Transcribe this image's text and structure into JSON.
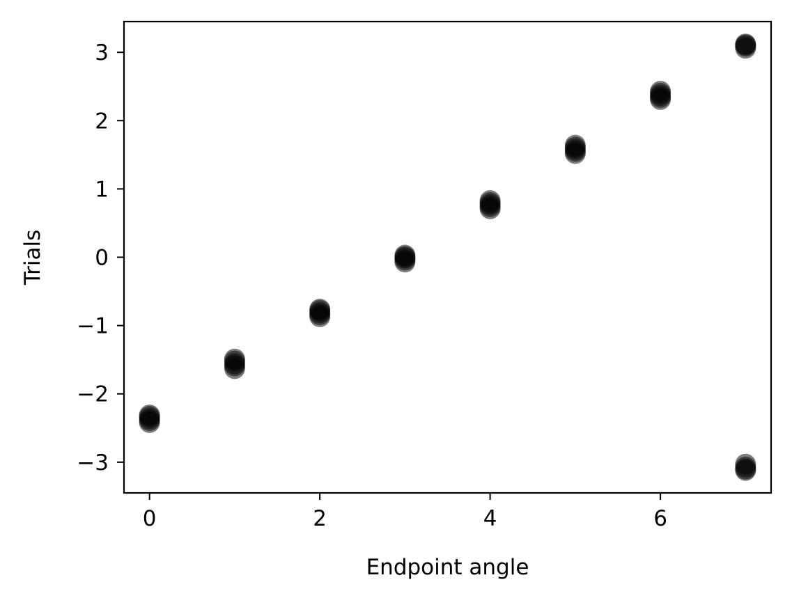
{
  "chart_data": {
    "type": "scatter",
    "title": "",
    "xlabel": "Endpoint angle",
    "ylabel": "Trials",
    "xlim": [
      -0.3,
      7.3
    ],
    "ylim": [
      -3.45,
      3.45
    ],
    "x_ticks": [
      0,
      2,
      4,
      6
    ],
    "x_tick_labels": [
      "0",
      "2",
      "4",
      "6"
    ],
    "y_ticks": [
      -3,
      -2,
      -1,
      0,
      1,
      2,
      3
    ],
    "y_tick_labels": [
      "−3",
      "−2",
      "−1",
      "0",
      "1",
      "2",
      "3"
    ],
    "grid": false,
    "legend": "none",
    "marker_color": "#000000",
    "marker_alpha": 0.5,
    "series": [
      {
        "points": [
          {
            "x": 0,
            "y": -2.42
          },
          {
            "x": 0,
            "y": -2.39
          },
          {
            "x": 0,
            "y": -2.36
          },
          {
            "x": 0,
            "y": -2.33
          },
          {
            "x": 0,
            "y": -2.31
          },
          {
            "x": 1,
            "y": -1.63
          },
          {
            "x": 1,
            "y": -1.59
          },
          {
            "x": 1,
            "y": -1.56
          },
          {
            "x": 1,
            "y": -1.52
          },
          {
            "x": 1,
            "y": -1.49
          },
          {
            "x": 2,
            "y": -0.87
          },
          {
            "x": 2,
            "y": -0.84
          },
          {
            "x": 2,
            "y": -0.81
          },
          {
            "x": 2,
            "y": -0.78
          },
          {
            "x": 2,
            "y": -0.76
          },
          {
            "x": 3,
            "y": -0.07
          },
          {
            "x": 3,
            "y": -0.04
          },
          {
            "x": 3,
            "y": -0.01
          },
          {
            "x": 3,
            "y": 0.01
          },
          {
            "x": 3,
            "y": 0.03
          },
          {
            "x": 4,
            "y": 0.71
          },
          {
            "x": 4,
            "y": 0.74
          },
          {
            "x": 4,
            "y": 0.77
          },
          {
            "x": 4,
            "y": 0.8
          },
          {
            "x": 4,
            "y": 0.83
          },
          {
            "x": 5,
            "y": 1.52
          },
          {
            "x": 5,
            "y": 1.55
          },
          {
            "x": 5,
            "y": 1.58
          },
          {
            "x": 5,
            "y": 1.61
          },
          {
            "x": 5,
            "y": 1.64
          },
          {
            "x": 6,
            "y": 2.31
          },
          {
            "x": 6,
            "y": 2.34
          },
          {
            "x": 6,
            "y": 2.37
          },
          {
            "x": 6,
            "y": 2.4
          },
          {
            "x": 6,
            "y": 2.43
          },
          {
            "x": 7,
            "y": 3.06
          },
          {
            "x": 7,
            "y": 3.09
          },
          {
            "x": 7,
            "y": 3.11
          },
          {
            "x": 7,
            "y": 3.12
          },
          {
            "x": 7,
            "y": -3.12
          },
          {
            "x": 7,
            "y": -3.1
          },
          {
            "x": 7,
            "y": -3.07
          },
          {
            "x": 7,
            "y": -3.03
          }
        ]
      }
    ]
  }
}
